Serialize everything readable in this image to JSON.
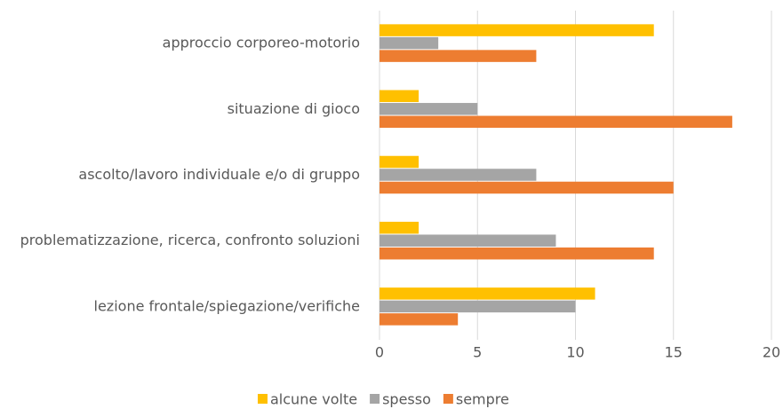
{
  "chart_data": {
    "type": "bar",
    "orientation": "horizontal",
    "categories": [
      "approccio corporeo-motorio",
      "situazione di gioco",
      "ascolto/lavoro individuale e/o di gruppo",
      "problematizzazione, ricerca, confronto soluzioni",
      "lezione frontale/spiegazione/verifiche"
    ],
    "series": [
      {
        "name": "alcune volte",
        "color": "#FFC000",
        "values": [
          14,
          2,
          2,
          2,
          11
        ]
      },
      {
        "name": "spesso",
        "color": "#A5A5A5",
        "values": [
          3,
          5,
          8,
          9,
          10
        ]
      },
      {
        "name": "sempre",
        "color": "#ED7D31",
        "values": [
          8,
          18,
          15,
          14,
          4
        ]
      }
    ],
    "xlim": [
      0,
      20
    ],
    "xticks": [
      0,
      5,
      10,
      15,
      20
    ],
    "grid": true,
    "legend": "bottom"
  }
}
